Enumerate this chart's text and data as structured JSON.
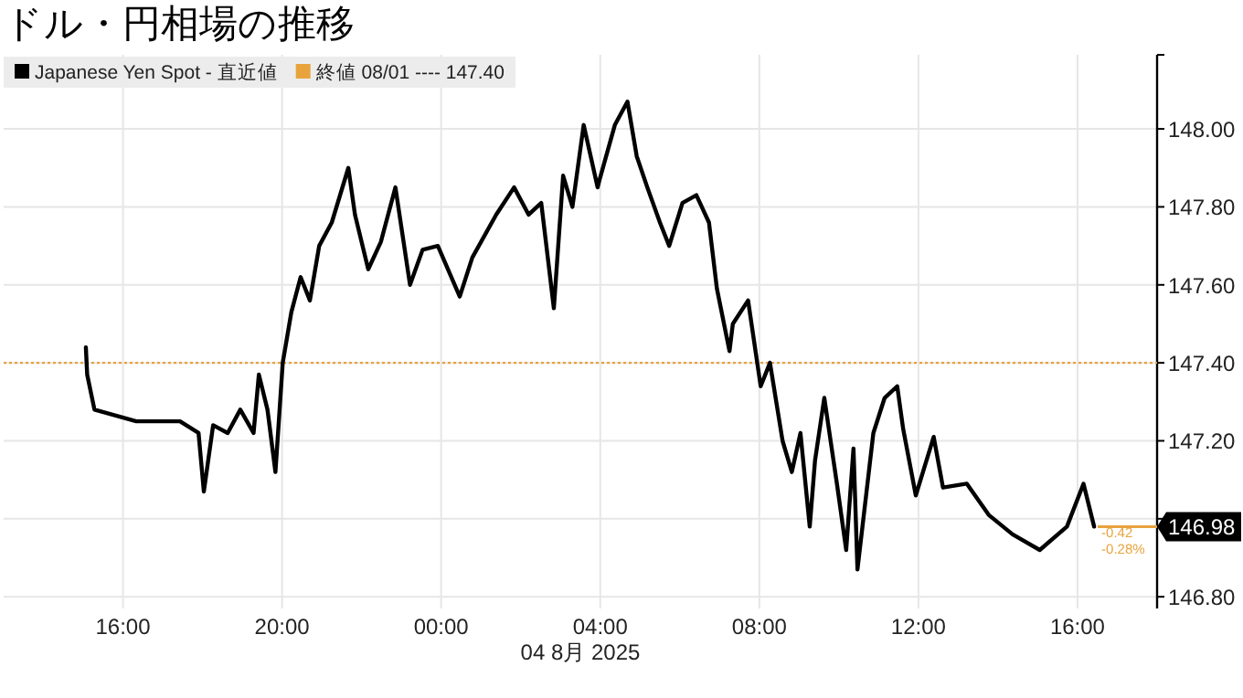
{
  "chart_data": {
    "type": "line",
    "title": "ドル・円相場の推移",
    "xlabel": "04 8月 2025",
    "x": [
      "2025-08-03T15:04",
      "2025-08-03T15:06",
      "2025-08-03T15:17",
      "2025-08-03T16:20",
      "2025-08-03T17:26",
      "2025-08-03T17:54",
      "2025-08-03T18:02",
      "2025-08-03T18:16",
      "2025-08-03T18:38",
      "2025-08-03T18:57",
      "2025-08-03T19:17",
      "2025-08-03T19:25",
      "2025-08-03T19:38",
      "2025-08-03T19:50",
      "2025-08-03T20:01",
      "2025-08-03T20:14",
      "2025-08-03T20:28",
      "2025-08-03T20:42",
      "2025-08-03T20:56",
      "2025-08-03T21:15",
      "2025-08-03T21:40",
      "2025-08-03T21:50",
      "2025-08-03T22:10",
      "2025-08-03T22:29",
      "2025-08-03T22:51",
      "2025-08-03T23:13",
      "2025-08-03T23:32",
      "2025-08-03T23:55",
      "2025-08-04T00:28",
      "2025-08-04T00:47",
      "2025-08-04T01:23",
      "2025-08-04T01:50",
      "2025-08-04T02:12",
      "2025-08-04T02:31",
      "2025-08-04T02:50",
      "2025-08-04T03:04",
      "2025-08-04T03:18",
      "2025-08-04T03:35",
      "2025-08-04T03:56",
      "2025-08-04T03:59",
      "2025-08-04T04:22",
      "2025-08-04T04:41",
      "2025-08-04T04:55",
      "2025-08-04T05:11",
      "2025-08-04T05:30",
      "2025-08-04T05:44",
      "2025-08-04T06:04",
      "2025-08-04T06:25",
      "2025-08-04T06:44",
      "2025-08-04T06:56",
      "2025-08-04T07:15",
      "2025-08-04T07:20",
      "2025-08-04T07:43",
      "2025-08-04T08:02",
      "2025-08-04T08:16",
      "2025-08-04T08:35",
      "2025-08-04T08:49",
      "2025-08-04T09:02",
      "2025-08-04T09:16",
      "2025-08-04T09:24",
      "2025-08-04T09:38",
      "2025-08-04T09:57",
      "2025-08-04T10:11",
      "2025-08-04T10:22",
      "2025-08-04T10:28",
      "2025-08-04T10:52",
      "2025-08-04T11:09",
      "2025-08-04T11:28",
      "2025-08-04T11:37",
      "2025-08-04T11:56",
      "2025-08-04T12:23",
      "2025-08-04T12:37",
      "2025-08-04T13:13",
      "2025-08-04T13:46",
      "2025-08-04T14:22",
      "2025-08-04T15:03",
      "2025-08-04T15:44",
      "2025-08-04T16:09",
      "2025-08-04T16:25"
    ],
    "series": [
      {
        "name": "Japanese Yen Spot - 直近値",
        "color": "#000000",
        "values": [
          147.44,
          147.37,
          147.28,
          147.25,
          147.25,
          147.22,
          147.07,
          147.24,
          147.22,
          147.28,
          147.22,
          147.37,
          147.28,
          147.12,
          147.4,
          147.53,
          147.62,
          147.56,
          147.7,
          147.76,
          147.9,
          147.78,
          147.64,
          147.71,
          147.85,
          147.6,
          147.69,
          147.7,
          147.57,
          147.67,
          147.78,
          147.85,
          147.78,
          147.81,
          147.54,
          147.88,
          147.8,
          148.01,
          147.85,
          147.87,
          148.01,
          148.07,
          147.93,
          147.85,
          147.76,
          147.7,
          147.81,
          147.83,
          147.76,
          147.59,
          147.43,
          147.5,
          147.56,
          147.34,
          147.4,
          147.2,
          147.12,
          147.22,
          146.98,
          147.15,
          147.31,
          147.09,
          146.92,
          147.18,
          146.87,
          147.22,
          147.31,
          147.34,
          147.23,
          147.06,
          147.21,
          147.08,
          147.09,
          147.01,
          146.96,
          146.92,
          146.98,
          147.09,
          146.98
        ]
      }
    ],
    "xlim": [
      "2025-08-03T13:00",
      "2025-08-04T18:00"
    ],
    "ylim": [
      146.77,
      148.19
    ],
    "xticks": [
      {
        "value": "2025-08-03T16:00",
        "label": "16:00"
      },
      {
        "value": "2025-08-03T20:00",
        "label": "20:00"
      },
      {
        "value": "2025-08-04T00:00",
        "label": "00:00"
      },
      {
        "value": "2025-08-04T04:00",
        "label": "04:00"
      },
      {
        "value": "2025-08-04T08:00",
        "label": "08:00"
      },
      {
        "value": "2025-08-04T12:00",
        "label": "12:00"
      },
      {
        "value": "2025-08-04T16:00",
        "label": "16:00"
      }
    ],
    "yticks": [
      {
        "value": 146.8,
        "label": "146.80"
      },
      {
        "value": 147,
        "label": null
      },
      {
        "value": 147.2,
        "label": "147.20"
      },
      {
        "value": 147.4,
        "label": "147.40"
      },
      {
        "value": 147.6,
        "label": "147.60"
      },
      {
        "value": 147.8,
        "label": "147.80"
      },
      {
        "value": 148,
        "label": "148.00"
      }
    ],
    "grid": true,
    "legend": "top left",
    "ref_lines": [
      {
        "axis": "y",
        "value": 147.4,
        "label": "終値 08/01 ---- 147.40",
        "color": "#e8a33d",
        "line_style": "dotted"
      }
    ],
    "annotations": [
      {
        "text": "146.98",
        "x": "2025-08-04T16:25",
        "y": 146.98
      },
      {
        "text": "-0.42",
        "x": "2025-08-04T16:25",
        "y": 146.98
      },
      {
        "text": "-0.28%",
        "x": "2025-08-04T16:25",
        "y": 146.98
      }
    ]
  }
}
